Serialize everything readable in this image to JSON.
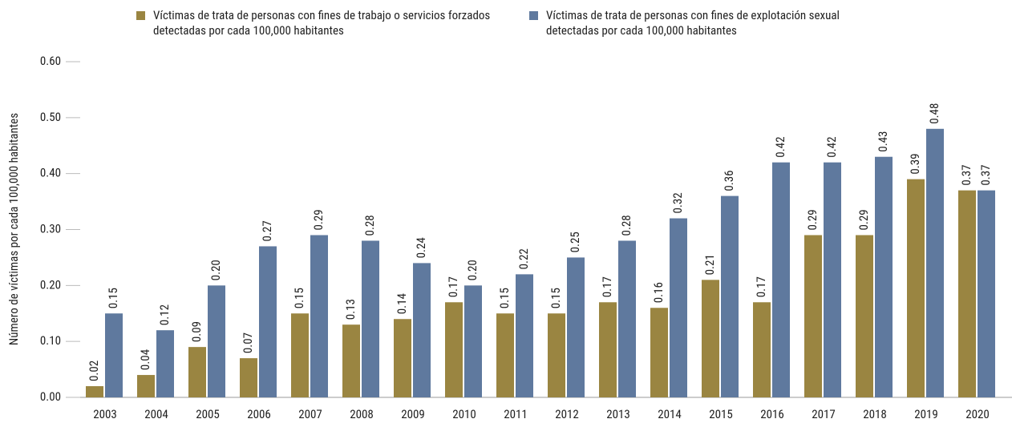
{
  "chart_data": {
    "type": "bar",
    "y_label": "Número de víctimas por cada 100,000 habitantes",
    "categories": [
      "2003",
      "2004",
      "2005",
      "2006",
      "2007",
      "2008",
      "2009",
      "2010",
      "2011",
      "2012",
      "2013",
      "2014",
      "2015",
      "2016",
      "2017",
      "2018",
      "2019",
      "2020"
    ],
    "series": [
      {
        "name": "Víctimas de trata de personas con fines de trabajo o servicios forzados detectadas por cada 100,000 habitantes",
        "color": "#9a8541",
        "values": [
          0.02,
          0.04,
          0.09,
          0.07,
          0.15,
          0.13,
          0.14,
          0.17,
          0.15,
          0.15,
          0.17,
          0.16,
          0.21,
          0.17,
          0.29,
          0.29,
          0.39,
          0.37
        ],
        "value_labels": [
          "0.02",
          "0.04",
          "0.09",
          "0.07",
          "0.15",
          "0.13",
          "0.14",
          "0.17",
          "0.15",
          "0.15",
          "0.17",
          "0.16",
          "0.21",
          "0.17",
          "0.29",
          "0.29",
          "0.39",
          "0.37"
        ]
      },
      {
        "name": "Víctimas de trata de personas con fines de explotación sexual detectadas por cada 100,000 habitantes",
        "color": "#5f799e",
        "values": [
          0.15,
          0.12,
          0.2,
          0.27,
          0.29,
          0.28,
          0.24,
          0.2,
          0.22,
          0.25,
          0.28,
          0.32,
          0.36,
          0.42,
          0.42,
          0.43,
          0.48,
          0.37
        ],
        "value_labels": [
          "0.15",
          "0.12",
          "0.20",
          "0.27",
          "0.29",
          "0.28",
          "0.24",
          "0.20",
          "0.22",
          "0.25",
          "0.28",
          "0.32",
          "0.36",
          "0.42",
          "0.42",
          "0.43",
          "0.48",
          "0.37"
        ]
      }
    ],
    "ylim": [
      0,
      0.6
    ],
    "yticks": [
      {
        "value": 0,
        "label": "0.00"
      },
      {
        "value": 0.1,
        "label": "0.10"
      },
      {
        "value": 0.2,
        "label": "0.20"
      },
      {
        "value": 0.3,
        "label": "0.30"
      },
      {
        "value": 0.4,
        "label": "0.40"
      },
      {
        "value": 0.5,
        "label": "0.50"
      },
      {
        "value": 0.6,
        "label": "0.60"
      }
    ],
    "grid": false
  }
}
